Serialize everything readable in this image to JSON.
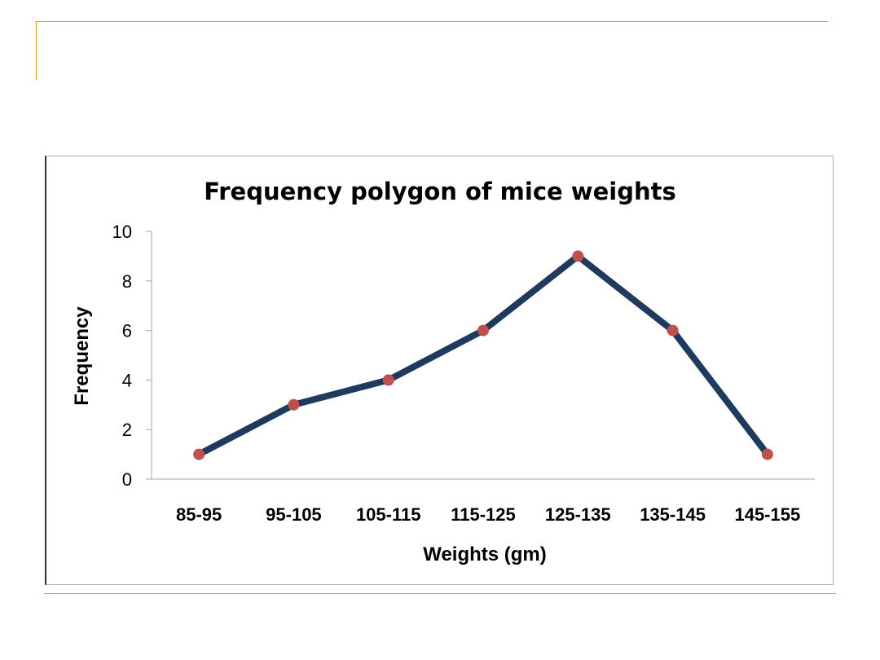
{
  "theme": {
    "accent_line": "#d4a017",
    "series_line": "#1f3a5f",
    "marker": "#c0504d",
    "axis": "#a6a6a6"
  },
  "chart_data": {
    "type": "line",
    "title": "Frequency polygon of mice weights",
    "xlabel": "Weights (gm)",
    "ylabel": "Frequency",
    "categories": [
      "85-95",
      "95-105",
      "105-115",
      "115-125",
      "125-135",
      "135-145",
      "145-155"
    ],
    "series": [
      {
        "values": [
          1,
          3,
          4,
          6,
          9,
          6,
          1
        ]
      }
    ],
    "ylim": [
      0,
      10
    ],
    "yticks": [
      "0",
      "2",
      "4",
      "6",
      "8",
      "10"
    ],
    "grid": false,
    "legend": "none",
    "markers": true
  }
}
